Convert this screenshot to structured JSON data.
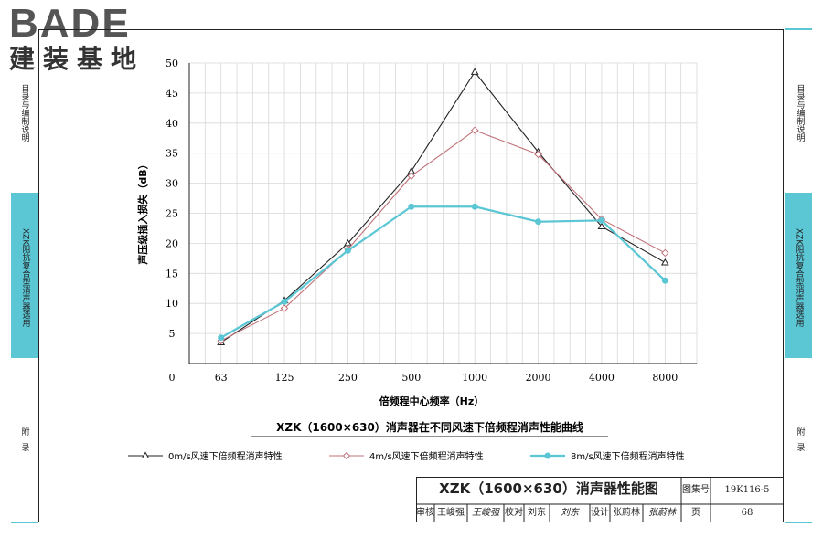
{
  "logo": {
    "brand": "BADE",
    "sub": "建装基地"
  },
  "sidebar": {
    "left": [
      {
        "label": "目录与编制说明",
        "active": false
      },
      {
        "label": "XZK阻抗复合型消声器选用",
        "active": true
      },
      {
        "label": "附录",
        "active": false
      }
    ],
    "right": [
      {
        "label": "目录与编制说明",
        "active": false
      },
      {
        "label": "XZK阻抗复合型消声器选用",
        "active": true
      },
      {
        "label": "附录",
        "active": false
      }
    ],
    "accent": "#5bc6d4"
  },
  "chart_data": {
    "type": "line",
    "title": "XZK（1600×630）消声器在不同风速下倍频程消声性能曲线",
    "xlabel": "倍频程中心频率（Hz）",
    "ylabel": "声压级插入损失（dB）",
    "categories": [
      "63",
      "125",
      "250",
      "500",
      "1000",
      "2000",
      "4000",
      "8000"
    ],
    "ylim": [
      0,
      50
    ],
    "yticks": [
      "0",
      "5",
      "10",
      "15",
      "20",
      "25",
      "30",
      "35",
      "40",
      "45",
      "50"
    ],
    "grid": true,
    "legend_position": "bottom",
    "series": [
      {
        "name": "0m/s风速下倍频程消声特性",
        "values": [
          3.5,
          10.5,
          20,
          32,
          48.5,
          35.2,
          22.8,
          16.8
        ],
        "color": "#222222",
        "marker": "triangle"
      },
      {
        "name": "4m/s风速下倍频程消声特性",
        "values": [
          3.8,
          9.2,
          19,
          31.2,
          38.8,
          34.8,
          24,
          18.4
        ],
        "color": "#c0727a",
        "marker": "diamond"
      },
      {
        "name": "8m/s风速下倍频程消声特性",
        "values": [
          4.3,
          10.3,
          18.8,
          26.1,
          26.1,
          23.6,
          23.8,
          13.8
        ],
        "color": "#5bc6d4",
        "marker": "circle"
      }
    ]
  },
  "titleblock": {
    "title": "XZK（1600×630）消声器性能图",
    "atlas_label": "图集号",
    "atlas_value": "19K116-5",
    "review_label": "审核",
    "review_name": "王峻强",
    "review_sign": "王峻强",
    "check_label": "校对",
    "check_name": "刘东",
    "check_sign": "刘东",
    "design_label": "设计",
    "design_name": "张蔚林",
    "design_sign": "张蔚林",
    "page_label": "页",
    "page_value": "68"
  }
}
